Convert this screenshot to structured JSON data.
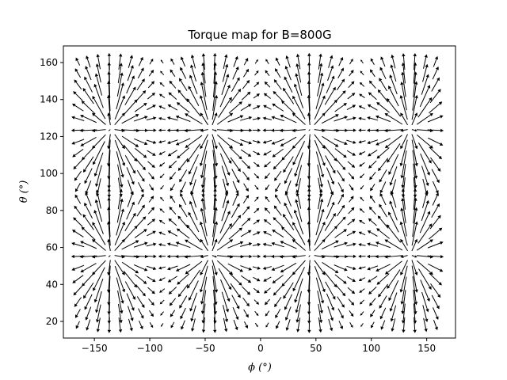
{
  "chart_data": {
    "type": "quiver",
    "title": "Torque map for B=800G",
    "xlabel": "ϕ (°)",
    "ylabel": "θ (°)",
    "xlim": [
      -178,
      176
    ],
    "ylim": [
      11,
      169
    ],
    "xticks": [
      -150,
      -100,
      -50,
      0,
      50,
      100,
      150
    ],
    "yticks": [
      20,
      40,
      60,
      80,
      100,
      120,
      140,
      160
    ],
    "xtick_labels": [
      "−150",
      "−100",
      "−50",
      "0",
      "50",
      "100",
      "150"
    ],
    "ytick_labels": [
      "20",
      "40",
      "60",
      "80",
      "100",
      "120",
      "140",
      "160"
    ],
    "grid": false,
    "legend": "none",
    "arrow_color": "#000000",
    "x_grid": {
      "start": -165,
      "step": 9.5,
      "count": 35
    },
    "y_grid": {
      "start": 18,
      "step": 6.2,
      "count": 24
    },
    "field_model": {
      "phi_sources": [
        -135,
        -45,
        45,
        135
      ],
      "theta_sources": [
        56,
        124
      ],
      "max_arrow_length_deg": 9
    }
  }
}
